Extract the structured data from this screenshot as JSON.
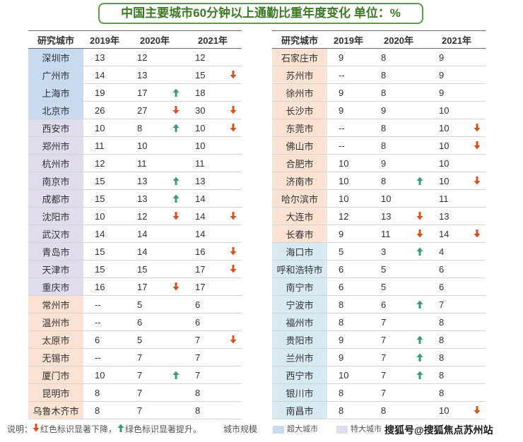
{
  "title": "中国主要城市60分钟以上通勤比重年度变化  单位：%",
  "colors": {
    "down_arrow": "#d9501e",
    "up_arrow": "#3d9a74",
    "mega_city": "#c7daf0",
    "super_city": "#e0dcec",
    "type1_city": "#fbe2d2",
    "type2_city": "#d7eaf2",
    "title_border": "#5a9c3c"
  },
  "chart_data": {
    "type": "table",
    "columns": [
      "研究城市",
      "2019年",
      "2020年",
      "2021年"
    ],
    "left_rows": [
      {
        "city": "深圳市",
        "cat": "mega",
        "y2019": "13",
        "y2020": "12",
        "m2020": "",
        "y2021": "12",
        "m2021": ""
      },
      {
        "city": "广州市",
        "cat": "mega",
        "y2019": "14",
        "y2020": "13",
        "m2020": "",
        "y2021": "15",
        "m2021": "down"
      },
      {
        "city": "上海市",
        "cat": "mega",
        "y2019": "19",
        "y2020": "17",
        "m2020": "up",
        "y2021": "18",
        "m2021": ""
      },
      {
        "city": "北京市",
        "cat": "mega",
        "y2019": "26",
        "y2020": "27",
        "m2020": "down",
        "y2021": "30",
        "m2021": "down"
      },
      {
        "city": "西安市",
        "cat": "super",
        "y2019": "10",
        "y2020": "8",
        "m2020": "up",
        "y2021": "10",
        "m2021": "down"
      },
      {
        "city": "郑州市",
        "cat": "super",
        "y2019": "11",
        "y2020": "10",
        "m2020": "",
        "y2021": "10",
        "m2021": ""
      },
      {
        "city": "杭州市",
        "cat": "super",
        "y2019": "12",
        "y2020": "11",
        "m2020": "",
        "y2021": "11",
        "m2021": ""
      },
      {
        "city": "南京市",
        "cat": "super",
        "y2019": "15",
        "y2020": "13",
        "m2020": "up",
        "y2021": "13",
        "m2021": ""
      },
      {
        "city": "成都市",
        "cat": "super",
        "y2019": "15",
        "y2020": "13",
        "m2020": "up",
        "y2021": "14",
        "m2021": ""
      },
      {
        "city": "沈阳市",
        "cat": "super",
        "y2019": "10",
        "y2020": "12",
        "m2020": "down",
        "y2021": "14",
        "m2021": "down"
      },
      {
        "city": "武汉市",
        "cat": "super",
        "y2019": "14",
        "y2020": "14",
        "m2020": "",
        "y2021": "14",
        "m2021": ""
      },
      {
        "city": "青岛市",
        "cat": "super",
        "y2019": "15",
        "y2020": "14",
        "m2020": "",
        "y2021": "16",
        "m2021": "down"
      },
      {
        "city": "天津市",
        "cat": "super",
        "y2019": "15",
        "y2020": "15",
        "m2020": "",
        "y2021": "17",
        "m2021": "down"
      },
      {
        "city": "重庆市",
        "cat": "super",
        "y2019": "16",
        "y2020": "17",
        "m2020": "down",
        "y2021": "17",
        "m2021": ""
      },
      {
        "city": "常州市",
        "cat": "type1",
        "y2019": "--",
        "y2020": "5",
        "m2020": "",
        "y2021": "6",
        "m2021": ""
      },
      {
        "city": "温州市",
        "cat": "type1",
        "y2019": "--",
        "y2020": "6",
        "m2020": "",
        "y2021": "6",
        "m2021": ""
      },
      {
        "city": "太原市",
        "cat": "type1",
        "y2019": "6",
        "y2020": "5",
        "m2020": "",
        "y2021": "7",
        "m2021": "down"
      },
      {
        "city": "无锡市",
        "cat": "type1",
        "y2019": "--",
        "y2020": "7",
        "m2020": "",
        "y2021": "7",
        "m2021": ""
      },
      {
        "city": "厦门市",
        "cat": "type1",
        "y2019": "10",
        "y2020": "7",
        "m2020": "up",
        "y2021": "7",
        "m2021": ""
      },
      {
        "city": "昆明市",
        "cat": "type1",
        "y2019": "8",
        "y2020": "7",
        "m2020": "",
        "y2021": "8",
        "m2021": ""
      },
      {
        "city": "乌鲁木齐市",
        "cat": "type1",
        "y2019": "8",
        "y2020": "7",
        "m2020": "",
        "y2021": "8",
        "m2021": ""
      }
    ],
    "right_rows": [
      {
        "city": "石家庄市",
        "cat": "type1",
        "y2019": "9",
        "y2020": "8",
        "m2020": "",
        "y2021": "9",
        "m2021": ""
      },
      {
        "city": "苏州市",
        "cat": "type1",
        "y2019": "--",
        "y2020": "8",
        "m2020": "",
        "y2021": "9",
        "m2021": ""
      },
      {
        "city": "徐州市",
        "cat": "type1",
        "y2019": "9",
        "y2020": "8",
        "m2020": "",
        "y2021": "9",
        "m2021": ""
      },
      {
        "city": "长沙市",
        "cat": "type1",
        "y2019": "9",
        "y2020": "9",
        "m2020": "",
        "y2021": "10",
        "m2021": ""
      },
      {
        "city": "东莞市",
        "cat": "type1",
        "y2019": "--",
        "y2020": "8",
        "m2020": "",
        "y2021": "10",
        "m2021": "down"
      },
      {
        "city": "佛山市",
        "cat": "type1",
        "y2019": "--",
        "y2020": "8",
        "m2020": "",
        "y2021": "10",
        "m2021": "down"
      },
      {
        "city": "合肥市",
        "cat": "type1",
        "y2019": "10",
        "y2020": "9",
        "m2020": "",
        "y2021": "10",
        "m2021": ""
      },
      {
        "city": "济南市",
        "cat": "type1",
        "y2019": "10",
        "y2020": "8",
        "m2020": "up",
        "y2021": "10",
        "m2021": "down"
      },
      {
        "city": "哈尔滨市",
        "cat": "type1",
        "y2019": "10",
        "y2020": "10",
        "m2020": "",
        "y2021": "11",
        "m2021": ""
      },
      {
        "city": "大连市",
        "cat": "type1",
        "y2019": "12",
        "y2020": "13",
        "m2020": "down",
        "y2021": "13",
        "m2021": ""
      },
      {
        "city": "长春市",
        "cat": "type1",
        "y2019": "9",
        "y2020": "11",
        "m2020": "down",
        "y2021": "14",
        "m2021": "down"
      },
      {
        "city": "海口市",
        "cat": "type2",
        "y2019": "5",
        "y2020": "3",
        "m2020": "up",
        "y2021": "4",
        "m2021": ""
      },
      {
        "city": "呼和浩特市",
        "cat": "type2",
        "y2019": "6",
        "y2020": "5",
        "m2020": "",
        "y2021": "6",
        "m2021": ""
      },
      {
        "city": "南宁市",
        "cat": "type2",
        "y2019": "6",
        "y2020": "5",
        "m2020": "",
        "y2021": "6",
        "m2021": ""
      },
      {
        "city": "宁波市",
        "cat": "type2",
        "y2019": "8",
        "y2020": "6",
        "m2020": "up",
        "y2021": "7",
        "m2021": ""
      },
      {
        "city": "福州市",
        "cat": "type2",
        "y2019": "8",
        "y2020": "7",
        "m2020": "",
        "y2021": "8",
        "m2021": ""
      },
      {
        "city": "贵阳市",
        "cat": "type2",
        "y2019": "9",
        "y2020": "7",
        "m2020": "up",
        "y2021": "8",
        "m2021": ""
      },
      {
        "city": "兰州市",
        "cat": "type2",
        "y2019": "9",
        "y2020": "7",
        "m2020": "up",
        "y2021": "8",
        "m2021": ""
      },
      {
        "city": "西宁市",
        "cat": "type2",
        "y2019": "10",
        "y2020": "7",
        "m2020": "up",
        "y2021": "8",
        "m2021": ""
      },
      {
        "city": "银川市",
        "cat": "type2",
        "y2019": "8",
        "y2020": "7",
        "m2020": "",
        "y2021": "8",
        "m2021": ""
      },
      {
        "city": "南昌市",
        "cat": "type2",
        "y2019": "8",
        "y2020": "8",
        "m2020": "",
        "y2021": "10",
        "m2021": "down"
      }
    ]
  },
  "legend": {
    "prefix": "说明：",
    "red_text": "红色标识显著下降，",
    "green_text": "绿色标识显著提升。",
    "scale_label": "城市规模",
    "mega_label": "超大城市",
    "super_label": "特大城市"
  },
  "watermark": "搜狐号@搜狐焦点苏州站"
}
